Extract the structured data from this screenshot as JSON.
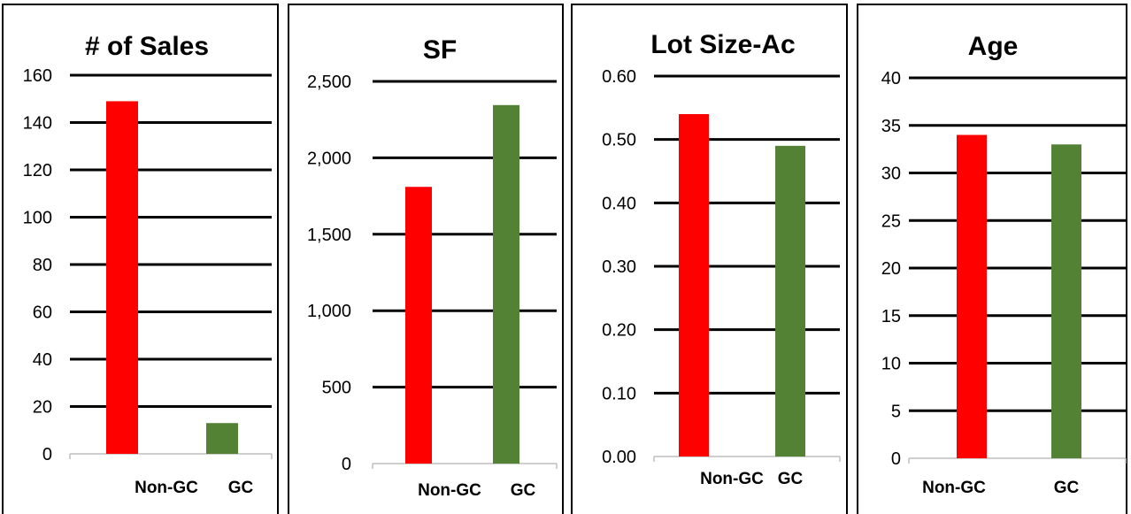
{
  "colors": {
    "non_gc": "#ff0000",
    "gc": "#548235",
    "grid": "#000000"
  },
  "chart_data": [
    {
      "type": "bar",
      "title": "# of Sales",
      "categories": [
        "Non-GC",
        "GC"
      ],
      "values": [
        149,
        13
      ],
      "ylim": [
        0,
        160
      ],
      "yticks": [
        "0",
        "20",
        "40",
        "60",
        "80",
        "100",
        "120",
        "140",
        "160"
      ],
      "grid": true
    },
    {
      "type": "bar",
      "title": "SF",
      "categories": [
        "Non-GC",
        "GC"
      ],
      "values": [
        1810,
        2345
      ],
      "ylim": [
        0,
        2500
      ],
      "yticks": [
        "0",
        "500",
        "1,000",
        "1,500",
        "2,000",
        "2,500"
      ],
      "grid": true
    },
    {
      "type": "bar",
      "title": "Lot Size-Ac",
      "categories": [
        "Non-GC",
        "GC"
      ],
      "values": [
        0.54,
        0.49
      ],
      "ylim": [
        0,
        0.6
      ],
      "yticks": [
        "0.00",
        "0.10",
        "0.20",
        "0.30",
        "0.40",
        "0.50",
        "0.60"
      ],
      "grid": true
    },
    {
      "type": "bar",
      "title": "Age",
      "categories": [
        "Non-GC",
        "GC"
      ],
      "values": [
        34,
        33
      ],
      "ylim": [
        0,
        40
      ],
      "yticks": [
        "0",
        "5",
        "10",
        "15",
        "20",
        "25",
        "30",
        "35",
        "40"
      ],
      "grid": true
    }
  ]
}
